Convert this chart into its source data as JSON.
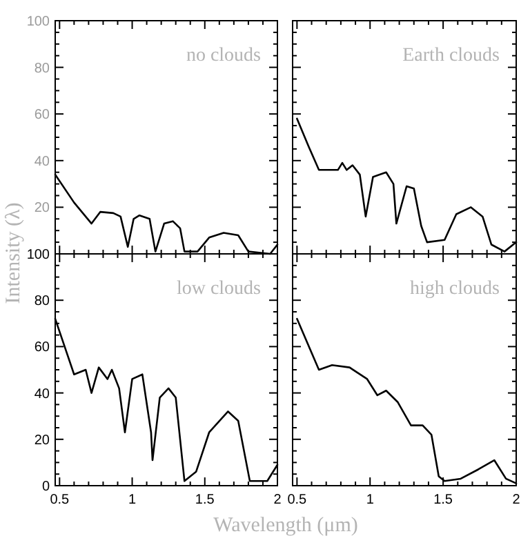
{
  "chart_data": [
    {
      "type": "line",
      "annotations": [
        "no clouds"
      ],
      "tick_labels": "y",
      "xlim": [
        0.47,
        2.0
      ],
      "ylim": [
        0,
        100
      ],
      "xticks": [
        0.5,
        {
          "value": 0.6,
          "label": null
        },
        {
          "value": 0.7,
          "label": null
        },
        {
          "value": 0.8,
          "label": null
        },
        {
          "value": 0.9,
          "label": null
        },
        1,
        {
          "value": 1.1,
          "label": null
        },
        {
          "value": 1.2,
          "label": null
        },
        {
          "value": 1.3,
          "label": null
        },
        {
          "value": 1.4,
          "label": null
        },
        1.5,
        {
          "value": 1.6,
          "label": null
        },
        {
          "value": 1.7,
          "label": null
        },
        {
          "value": 1.8,
          "label": null
        },
        {
          "value": 1.9,
          "label": null
        },
        2
      ],
      "yticks": [
        {
          "value": 0,
          "label": null
        },
        {
          "value": 5,
          "label": null
        },
        {
          "value": 10,
          "label": null
        },
        {
          "value": 15,
          "label": null
        },
        20,
        {
          "value": 25,
          "label": null
        },
        {
          "value": 30,
          "label": null
        },
        {
          "value": 35,
          "label": null
        },
        40,
        {
          "value": 45,
          "label": null
        },
        {
          "value": 50,
          "label": null
        },
        {
          "value": 55,
          "label": null
        },
        60,
        {
          "value": 65,
          "label": null
        },
        {
          "value": 70,
          "label": null
        },
        {
          "value": 75,
          "label": null
        },
        80,
        {
          "value": 85,
          "label": null
        },
        {
          "value": 90,
          "label": null
        },
        {
          "value": 95,
          "label": null
        },
        100
      ],
      "x": [
        0.47,
        0.6,
        0.72,
        0.78,
        0.87,
        0.92,
        0.97,
        1.01,
        1.05,
        1.12,
        1.16,
        1.22,
        1.28,
        1.33,
        1.36,
        1.45,
        1.53,
        1.63,
        1.73,
        1.8,
        1.95,
        2.0
      ],
      "series": [
        {
          "color": "#000000",
          "values": [
            34,
            22,
            13,
            18,
            17.5,
            16,
            3,
            15,
            16.5,
            15,
            1,
            13,
            14,
            11,
            1,
            1,
            7,
            9,
            8,
            1,
            0,
            4
          ]
        }
      ]
    },
    {
      "type": "line",
      "annotations": [
        "Earth clouds"
      ],
      "tick_labels": false,
      "xlim": [
        0.47,
        2.0
      ],
      "ylim": [
        0,
        100
      ],
      "xticks": [
        0.5,
        {
          "value": 0.6,
          "label": null
        },
        {
          "value": 0.7,
          "label": null
        },
        {
          "value": 0.8,
          "label": null
        },
        {
          "value": 0.9,
          "label": null
        },
        1,
        {
          "value": 1.1,
          "label": null
        },
        {
          "value": 1.2,
          "label": null
        },
        {
          "value": 1.3,
          "label": null
        },
        {
          "value": 1.4,
          "label": null
        },
        1.5,
        {
          "value": 1.6,
          "label": null
        },
        {
          "value": 1.7,
          "label": null
        },
        {
          "value": 1.8,
          "label": null
        },
        {
          "value": 1.9,
          "label": null
        },
        2
      ],
      "yticks": [
        {
          "value": 0,
          "label": null
        },
        {
          "value": 5,
          "label": null
        },
        {
          "value": 10,
          "label": null
        },
        {
          "value": 15,
          "label": null
        },
        {
          "value": 20,
          "label": null
        },
        {
          "value": 25,
          "label": null
        },
        {
          "value": 30,
          "label": null
        },
        {
          "value": 35,
          "label": null
        },
        {
          "value": 40,
          "label": null
        },
        {
          "value": 45,
          "label": null
        },
        {
          "value": 50,
          "label": null
        },
        {
          "value": 55,
          "label": null
        },
        {
          "value": 60,
          "label": null
        },
        {
          "value": 65,
          "label": null
        },
        {
          "value": 70,
          "label": null
        },
        {
          "value": 75,
          "label": null
        },
        {
          "value": 80,
          "label": null
        },
        {
          "value": 85,
          "label": null
        },
        {
          "value": 90,
          "label": null
        },
        {
          "value": 95,
          "label": null
        },
        {
          "value": 100,
          "label": null
        }
      ],
      "x": [
        0.5,
        0.58,
        0.65,
        0.78,
        0.81,
        0.84,
        0.88,
        0.93,
        0.97,
        1.02,
        1.11,
        1.16,
        1.18,
        1.25,
        1.3,
        1.35,
        1.39,
        1.51,
        1.59,
        1.69,
        1.77,
        1.83,
        1.92,
        2.0
      ],
      "series": [
        {
          "color": "#000000",
          "values": [
            58,
            46,
            36,
            36,
            39,
            36,
            38,
            34,
            16,
            33,
            35,
            30,
            13,
            29,
            28,
            12,
            5,
            6,
            17,
            20,
            16,
            4,
            1,
            5
          ]
        }
      ]
    },
    {
      "type": "line",
      "annotations": [
        "low clouds"
      ],
      "xlabel": "Wavelength (μm)",
      "ylabel": "Intensity (λ)",
      "xlim": [
        0.47,
        2.0
      ],
      "ylim": [
        0,
        100
      ],
      "xticks": [
        0.5,
        {
          "value": 0.6,
          "label": null
        },
        {
          "value": 0.7,
          "label": null
        },
        {
          "value": 0.8,
          "label": null
        },
        {
          "value": 0.9,
          "label": null
        },
        1,
        {
          "value": 1.1,
          "label": null
        },
        {
          "value": 1.2,
          "label": null
        },
        {
          "value": 1.3,
          "label": null
        },
        {
          "value": 1.4,
          "label": null
        },
        1.5,
        {
          "value": 1.6,
          "label": null
        },
        {
          "value": 1.7,
          "label": null
        },
        {
          "value": 1.8,
          "label": null
        },
        {
          "value": 1.9,
          "label": null
        },
        2
      ],
      "yticks": [
        0,
        {
          "value": 5,
          "label": null
        },
        {
          "value": 10,
          "label": null
        },
        {
          "value": 15,
          "label": null
        },
        20,
        {
          "value": 25,
          "label": null
        },
        {
          "value": 30,
          "label": null
        },
        {
          "value": 35,
          "label": null
        },
        40,
        {
          "value": 45,
          "label": null
        },
        {
          "value": 50,
          "label": null
        },
        {
          "value": 55,
          "label": null
        },
        60,
        {
          "value": 65,
          "label": null
        },
        {
          "value": 70,
          "label": null
        },
        {
          "value": 75,
          "label": null
        },
        80,
        {
          "value": 85,
          "label": null
        },
        {
          "value": 90,
          "label": null
        },
        {
          "value": 95,
          "label": null
        },
        100
      ],
      "x": [
        0.47,
        0.6,
        0.68,
        0.72,
        0.77,
        0.83,
        0.86,
        0.91,
        0.95,
        1.0,
        1.07,
        1.13,
        1.14,
        1.19,
        1.25,
        1.3,
        1.36,
        1.44,
        1.53,
        1.66,
        1.73,
        1.81,
        1.93,
        2.0
      ],
      "series": [
        {
          "color": "#000000",
          "values": [
            72,
            48,
            50,
            40,
            51,
            46,
            50,
            42,
            23,
            46,
            48,
            23,
            11,
            38,
            42,
            38,
            2,
            6,
            23,
            32,
            28,
            2,
            2,
            9
          ]
        }
      ]
    },
    {
      "type": "line",
      "annotations": [
        "high clouds"
      ],
      "tick_labels": "x",
      "xlim": [
        0.47,
        2.0
      ],
      "ylim": [
        0,
        100
      ],
      "xticks": [
        0.5,
        {
          "value": 0.6,
          "label": null
        },
        {
          "value": 0.7,
          "label": null
        },
        {
          "value": 0.8,
          "label": null
        },
        {
          "value": 0.9,
          "label": null
        },
        1,
        {
          "value": 1.1,
          "label": null
        },
        {
          "value": 1.2,
          "label": null
        },
        {
          "value": 1.3,
          "label": null
        },
        {
          "value": 1.4,
          "label": null
        },
        1.5,
        {
          "value": 1.6,
          "label": null
        },
        {
          "value": 1.7,
          "label": null
        },
        {
          "value": 1.8,
          "label": null
        },
        {
          "value": 1.9,
          "label": null
        },
        2
      ],
      "yticks": [
        {
          "value": 0,
          "label": null
        },
        {
          "value": 5,
          "label": null
        },
        {
          "value": 10,
          "label": null
        },
        {
          "value": 15,
          "label": null
        },
        {
          "value": 20,
          "label": null
        },
        {
          "value": 25,
          "label": null
        },
        {
          "value": 30,
          "label": null
        },
        {
          "value": 35,
          "label": null
        },
        {
          "value": 40,
          "label": null
        },
        {
          "value": 45,
          "label": null
        },
        {
          "value": 50,
          "label": null
        },
        {
          "value": 55,
          "label": null
        },
        {
          "value": 60,
          "label": null
        },
        {
          "value": 65,
          "label": null
        },
        {
          "value": 70,
          "label": null
        },
        {
          "value": 75,
          "label": null
        },
        {
          "value": 80,
          "label": null
        },
        {
          "value": 85,
          "label": null
        },
        {
          "value": 90,
          "label": null
        },
        {
          "value": 95,
          "label": null
        },
        {
          "value": 100,
          "label": null
        }
      ],
      "x": [
        0.5,
        0.65,
        0.74,
        0.86,
        0.98,
        1.05,
        1.11,
        1.19,
        1.28,
        1.36,
        1.42,
        1.47,
        1.51,
        1.62,
        1.74,
        1.85,
        1.93,
        2.0
      ],
      "series": [
        {
          "color": "#000000",
          "values": [
            72,
            50,
            52,
            51,
            46,
            39,
            41,
            36,
            26,
            26,
            22,
            4,
            2,
            3,
            7,
            11,
            3,
            1
          ]
        }
      ]
    }
  ]
}
